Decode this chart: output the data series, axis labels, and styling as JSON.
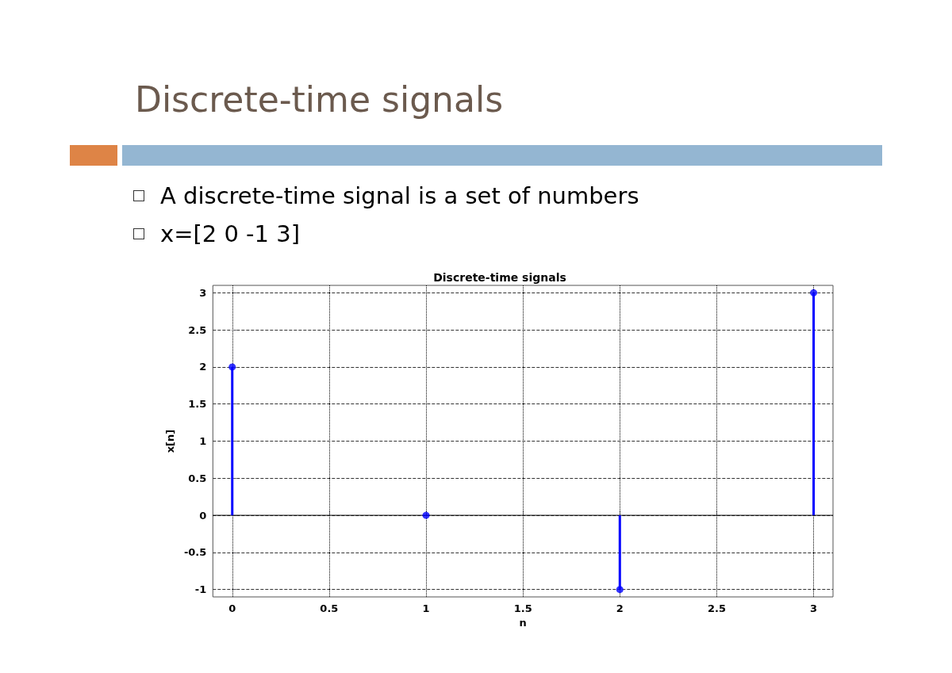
{
  "chart_data": {
    "type": "lollipop",
    "title": "Discrete-time signals",
    "subtitle": "Discrete-time signals",
    "xlabel": "n",
    "ylabel": "x[n]",
    "annotations": [
      "A discrete-time signal is a set of numbers",
      "x=[2  0  -1  3]"
    ],
    "x": [
      0,
      1,
      2,
      3
    ],
    "values": [
      2,
      0,
      -1,
      3
    ],
    "color": "#0000ff",
    "xlim": [
      -0.1,
      3.1
    ],
    "ylim": [
      -1.1,
      3.1
    ],
    "xticks": [
      0,
      0.5,
      1,
      1.5,
      2,
      2.5,
      3
    ],
    "yticks": [
      -1,
      -0.5,
      0,
      0.5,
      1,
      1.5,
      2,
      2.5,
      3
    ],
    "grid": true,
    "marker": "circle"
  }
}
